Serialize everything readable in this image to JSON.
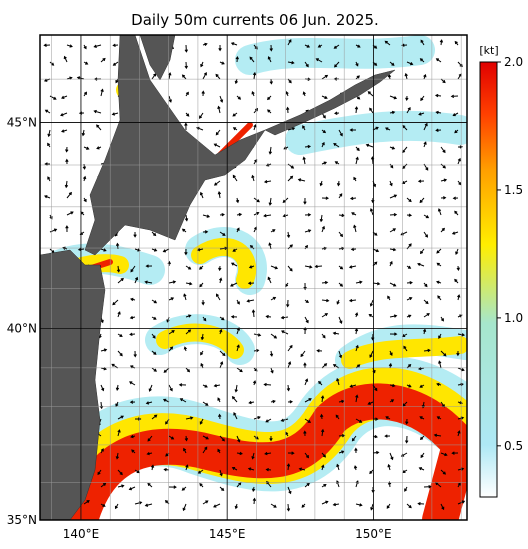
{
  "chart_data": {
    "type": "current-map",
    "title": "Daily 50m currents 06 Jun. 2025.",
    "xlim": [
      138.6,
      153.2
    ],
    "ylim": [
      35,
      47
    ],
    "xticks": [
      {
        "value": 140,
        "label": "140°E"
      },
      {
        "value": 145,
        "label": "145°E"
      },
      {
        "value": 150,
        "label": "150°E"
      }
    ],
    "yticks": [
      {
        "value": 35,
        "label": "35°N"
      },
      {
        "value": 40,
        "label": "40°N"
      },
      {
        "value": 45,
        "label": "45°N"
      }
    ],
    "colorbar": {
      "unit": "[kt]",
      "lim": [
        0.3,
        2.0
      ],
      "ticks": [
        {
          "value": 0.5,
          "label": "0.5"
        },
        {
          "value": 1.0,
          "label": "1.0"
        },
        {
          "value": 1.5,
          "label": "1.5"
        },
        {
          "value": 2.0,
          "label": "2.0"
        }
      ]
    }
  }
}
